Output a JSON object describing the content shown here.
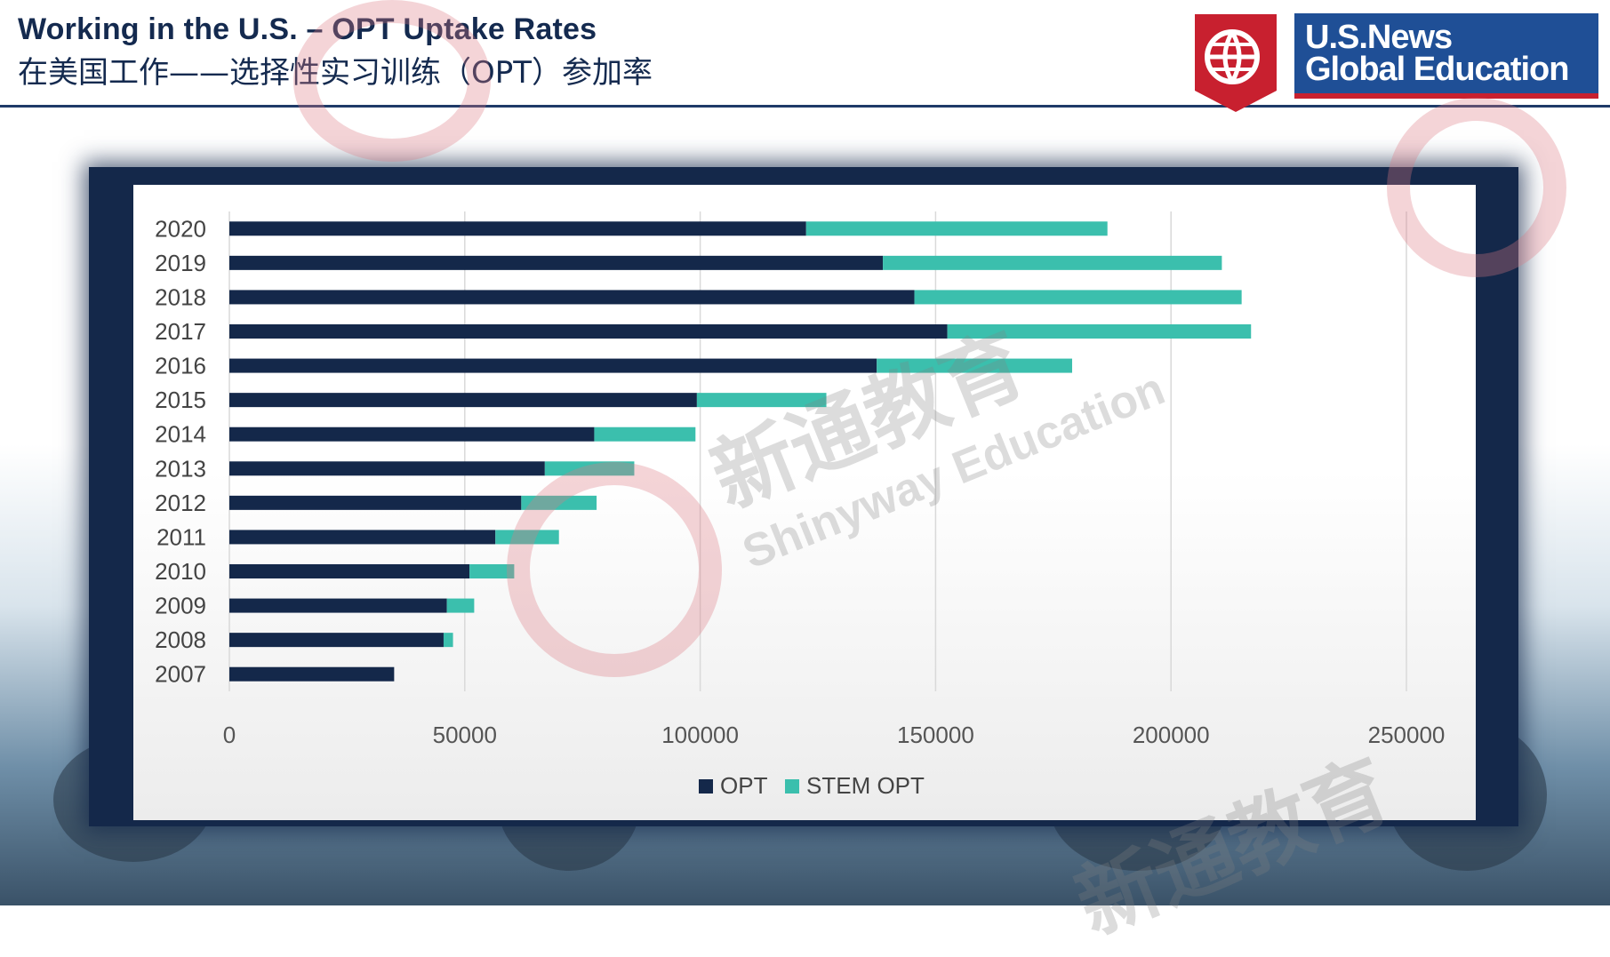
{
  "header": {
    "title_en": "Working in the U.S. – OPT Uptake Rates",
    "title_zh": "在美国工作——选择性实习训练（OPT）参加率"
  },
  "logo": {
    "line1": "U.S.News",
    "line2": "Global Education",
    "brand_color": "#1f4f96",
    "accent_color": "#c8202f"
  },
  "watermark": {
    "zh": "新通教育",
    "en": "Shinyway Education"
  },
  "chart_data": {
    "type": "bar",
    "orientation": "horizontal",
    "stacked": true,
    "categories": [
      "2020",
      "2019",
      "2018",
      "2017",
      "2016",
      "2015",
      "2014",
      "2013",
      "2012",
      "2011",
      "2010",
      "2009",
      "2008",
      "2007"
    ],
    "series": [
      {
        "name": "OPT",
        "color": "#14284a",
        "values": [
          122500,
          138800,
          145500,
          152500,
          137500,
          99300,
          77500,
          67000,
          62000,
          56500,
          51000,
          46200,
          45500,
          35000
        ]
      },
      {
        "name": "STEM OPT",
        "color": "#3bbfad",
        "values": [
          64000,
          72000,
          69500,
          64500,
          41500,
          27500,
          21500,
          19000,
          16000,
          13500,
          9500,
          5800,
          2000,
          0
        ]
      }
    ],
    "xlim": [
      0,
      250000
    ],
    "xticks": [
      0,
      50000,
      100000,
      150000,
      200000,
      250000
    ],
    "grid": true,
    "legend": "bottom"
  }
}
